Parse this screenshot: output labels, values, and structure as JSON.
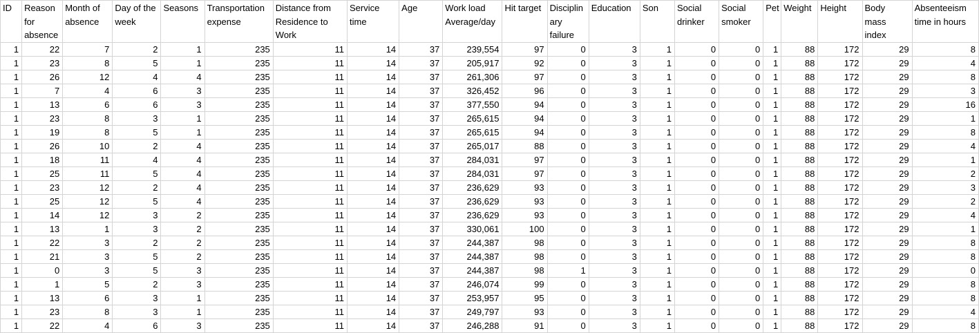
{
  "sheet": {
    "headers": [
      "ID",
      "Reason for absence",
      "Month of absence",
      "Day of the week",
      "Seasons",
      "Transportation expense",
      "Distance from Residence to Work",
      "Service time",
      "Age",
      "Work load Average/day",
      "Hit target",
      "Disciplin ary failure",
      "Education",
      "Son",
      "Social drinker",
      "Social smoker",
      "Pet",
      "Weight",
      "Height",
      "Body mass index",
      "Absenteeism time in hours"
    ],
    "rows": [
      [
        "1",
        "22",
        "7",
        "2",
        "1",
        "235",
        "11",
        "14",
        "37",
        "239,554",
        "97",
        "0",
        "3",
        "1",
        "0",
        "0",
        "1",
        "88",
        "172",
        "29",
        "8"
      ],
      [
        "1",
        "23",
        "8",
        "5",
        "1",
        "235",
        "11",
        "14",
        "37",
        "205,917",
        "92",
        "0",
        "3",
        "1",
        "0",
        "0",
        "1",
        "88",
        "172",
        "29",
        "4"
      ],
      [
        "1",
        "26",
        "12",
        "4",
        "4",
        "235",
        "11",
        "14",
        "37",
        "261,306",
        "97",
        "0",
        "3",
        "1",
        "0",
        "0",
        "1",
        "88",
        "172",
        "29",
        "8"
      ],
      [
        "1",
        "7",
        "4",
        "6",
        "3",
        "235",
        "11",
        "14",
        "37",
        "326,452",
        "96",
        "0",
        "3",
        "1",
        "0",
        "0",
        "1",
        "88",
        "172",
        "29",
        "3"
      ],
      [
        "1",
        "13",
        "6",
        "6",
        "3",
        "235",
        "11",
        "14",
        "37",
        "377,550",
        "94",
        "0",
        "3",
        "1",
        "0",
        "0",
        "1",
        "88",
        "172",
        "29",
        "16"
      ],
      [
        "1",
        "23",
        "8",
        "3",
        "1",
        "235",
        "11",
        "14",
        "37",
        "265,615",
        "94",
        "0",
        "3",
        "1",
        "0",
        "0",
        "1",
        "88",
        "172",
        "29",
        "1"
      ],
      [
        "1",
        "19",
        "8",
        "5",
        "1",
        "235",
        "11",
        "14",
        "37",
        "265,615",
        "94",
        "0",
        "3",
        "1",
        "0",
        "0",
        "1",
        "88",
        "172",
        "29",
        "8"
      ],
      [
        "1",
        "26",
        "10",
        "2",
        "4",
        "235",
        "11",
        "14",
        "37",
        "265,017",
        "88",
        "0",
        "3",
        "1",
        "0",
        "0",
        "1",
        "88",
        "172",
        "29",
        "4"
      ],
      [
        "1",
        "18",
        "11",
        "4",
        "4",
        "235",
        "11",
        "14",
        "37",
        "284,031",
        "97",
        "0",
        "3",
        "1",
        "0",
        "0",
        "1",
        "88",
        "172",
        "29",
        "1"
      ],
      [
        "1",
        "25",
        "11",
        "5",
        "4",
        "235",
        "11",
        "14",
        "37",
        "284,031",
        "97",
        "0",
        "3",
        "1",
        "0",
        "0",
        "1",
        "88",
        "172",
        "29",
        "2"
      ],
      [
        "1",
        "23",
        "12",
        "2",
        "4",
        "235",
        "11",
        "14",
        "37",
        "236,629",
        "93",
        "0",
        "3",
        "1",
        "0",
        "0",
        "1",
        "88",
        "172",
        "29",
        "3"
      ],
      [
        "1",
        "25",
        "12",
        "5",
        "4",
        "235",
        "11",
        "14",
        "37",
        "236,629",
        "93",
        "0",
        "3",
        "1",
        "0",
        "0",
        "1",
        "88",
        "172",
        "29",
        "2"
      ],
      [
        "1",
        "14",
        "12",
        "3",
        "2",
        "235",
        "11",
        "14",
        "37",
        "236,629",
        "93",
        "0",
        "3",
        "1",
        "0",
        "0",
        "1",
        "88",
        "172",
        "29",
        "4"
      ],
      [
        "1",
        "13",
        "1",
        "3",
        "2",
        "235",
        "11",
        "14",
        "37",
        "330,061",
        "100",
        "0",
        "3",
        "1",
        "0",
        "0",
        "1",
        "88",
        "172",
        "29",
        "1"
      ],
      [
        "1",
        "22",
        "3",
        "2",
        "2",
        "235",
        "11",
        "14",
        "37",
        "244,387",
        "98",
        "0",
        "3",
        "1",
        "0",
        "0",
        "1",
        "88",
        "172",
        "29",
        "8"
      ],
      [
        "1",
        "21",
        "3",
        "5",
        "2",
        "235",
        "11",
        "14",
        "37",
        "244,387",
        "98",
        "0",
        "3",
        "1",
        "0",
        "0",
        "1",
        "88",
        "172",
        "29",
        "8"
      ],
      [
        "1",
        "0",
        "3",
        "5",
        "3",
        "235",
        "11",
        "14",
        "37",
        "244,387",
        "98",
        "1",
        "3",
        "1",
        "0",
        "0",
        "1",
        "88",
        "172",
        "29",
        "0"
      ],
      [
        "1",
        "1",
        "5",
        "2",
        "3",
        "235",
        "11",
        "14",
        "37",
        "246,074",
        "99",
        "0",
        "3",
        "1",
        "0",
        "0",
        "1",
        "88",
        "172",
        "29",
        "8"
      ],
      [
        "1",
        "13",
        "6",
        "3",
        "1",
        "235",
        "11",
        "14",
        "37",
        "253,957",
        "95",
        "0",
        "3",
        "1",
        "0",
        "0",
        "1",
        "88",
        "172",
        "29",
        "8"
      ],
      [
        "1",
        "23",
        "8",
        "3",
        "1",
        "235",
        "11",
        "14",
        "37",
        "249,797",
        "93",
        "0",
        "3",
        "1",
        "0",
        "0",
        "1",
        "88",
        "172",
        "29",
        "4"
      ],
      [
        "1",
        "22",
        "4",
        "6",
        "3",
        "235",
        "11",
        "14",
        "37",
        "246,288",
        "91",
        "0",
        "3",
        "1",
        "0",
        "0",
        "1",
        "88",
        "172",
        "29",
        "8"
      ]
    ]
  }
}
